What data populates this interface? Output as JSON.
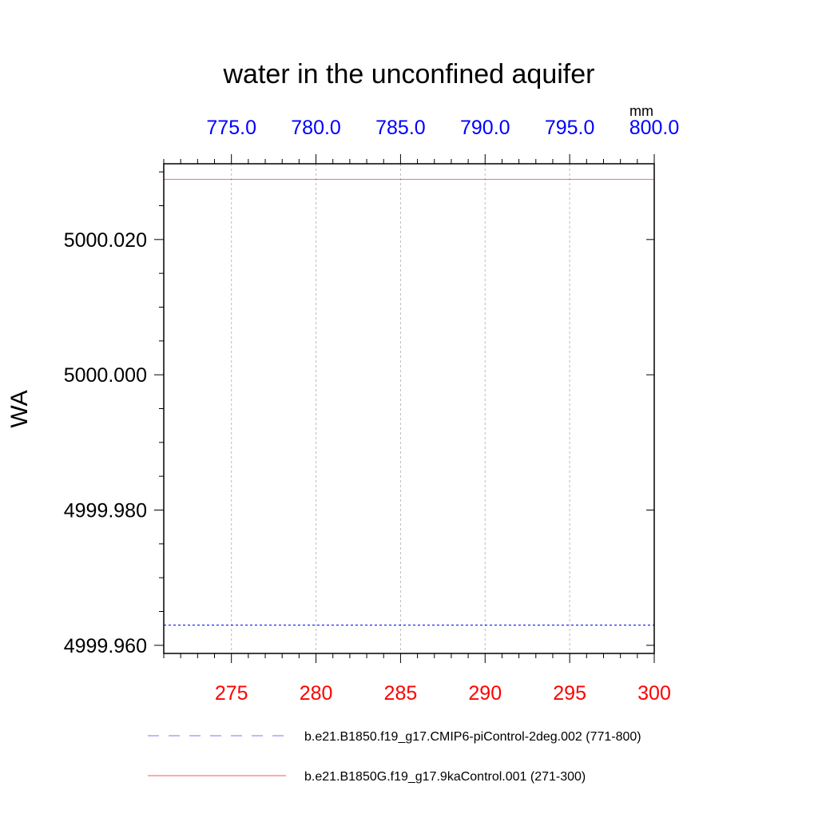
{
  "chart_data": {
    "type": "line",
    "title": "water in the unconfined aquifer",
    "ylabel": "WA",
    "units": "mm",
    "ylim": [
      4999.9588,
      5000.0312
    ],
    "yticks_major": [
      4999.96,
      4999.98,
      5000.0,
      5000.02
    ],
    "ytick_labels": [
      "4999.960",
      "4999.980",
      "5000.000",
      "5000.020"
    ],
    "yticks_minor_step": 0.005,
    "bottom_axis": {
      "color": "#ff0000",
      "xlim": [
        271,
        300
      ],
      "ticks": [
        275,
        280,
        285,
        290,
        295,
        300
      ],
      "tick_labels": [
        "275",
        "280",
        "285",
        "290",
        "295",
        "300"
      ]
    },
    "top_axis": {
      "color": "#0000ff",
      "xlim": [
        771,
        800
      ],
      "ticks": [
        775,
        780,
        785,
        790,
        795,
        800
      ],
      "tick_labels": [
        "775.0",
        "780.0",
        "785.0",
        "790.0",
        "795.0",
        "800.0"
      ]
    },
    "grid": "vertical-dashed",
    "legend_position": "bottom",
    "series": [
      {
        "name": "b.e21.B1850.f19_g17.CMIP6-piControl-2deg.002 (771-800)",
        "color": "#0000ff",
        "style": "dashed",
        "axis": "top",
        "x": [
          771,
          800
        ],
        "y": [
          4999.963,
          4999.963
        ]
      },
      {
        "name": "b.e21.B1850G.f19_g17.9kaControl.001 (271-300)",
        "color": "#ff0000",
        "style": "solid",
        "axis": "bottom",
        "x": [
          271,
          300
        ],
        "y": [
          5000.0289,
          5000.0289
        ]
      }
    ]
  }
}
